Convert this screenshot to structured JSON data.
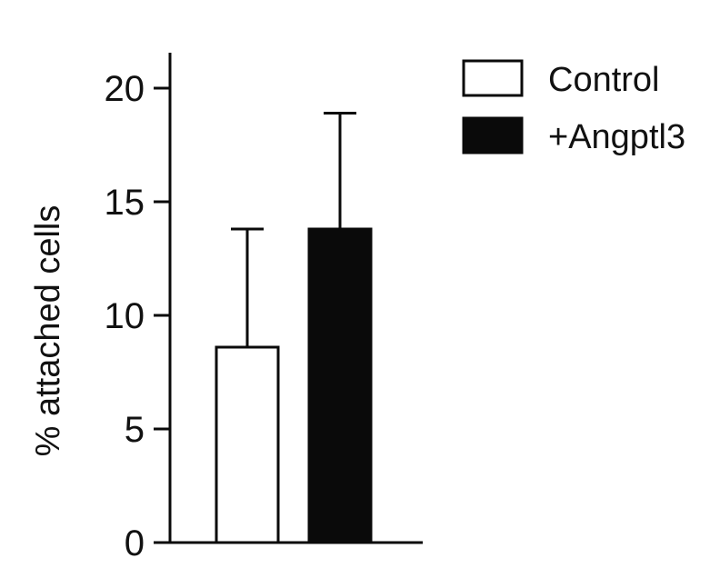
{
  "chart_data": {
    "type": "bar",
    "title": "",
    "xlabel": "",
    "ylabel": "% attached cells",
    "ylim": [
      0,
      20
    ],
    "yticks": [
      0,
      5,
      10,
      15,
      20
    ],
    "grid": false,
    "legend_position": "top-right",
    "series": [
      {
        "name": "Control",
        "value": 8.6,
        "error": 5.2,
        "color": "#ffffff"
      },
      {
        "name": "+Angptl3",
        "value": 13.8,
        "error": 5.1,
        "color": "#0a0a0a"
      }
    ]
  }
}
